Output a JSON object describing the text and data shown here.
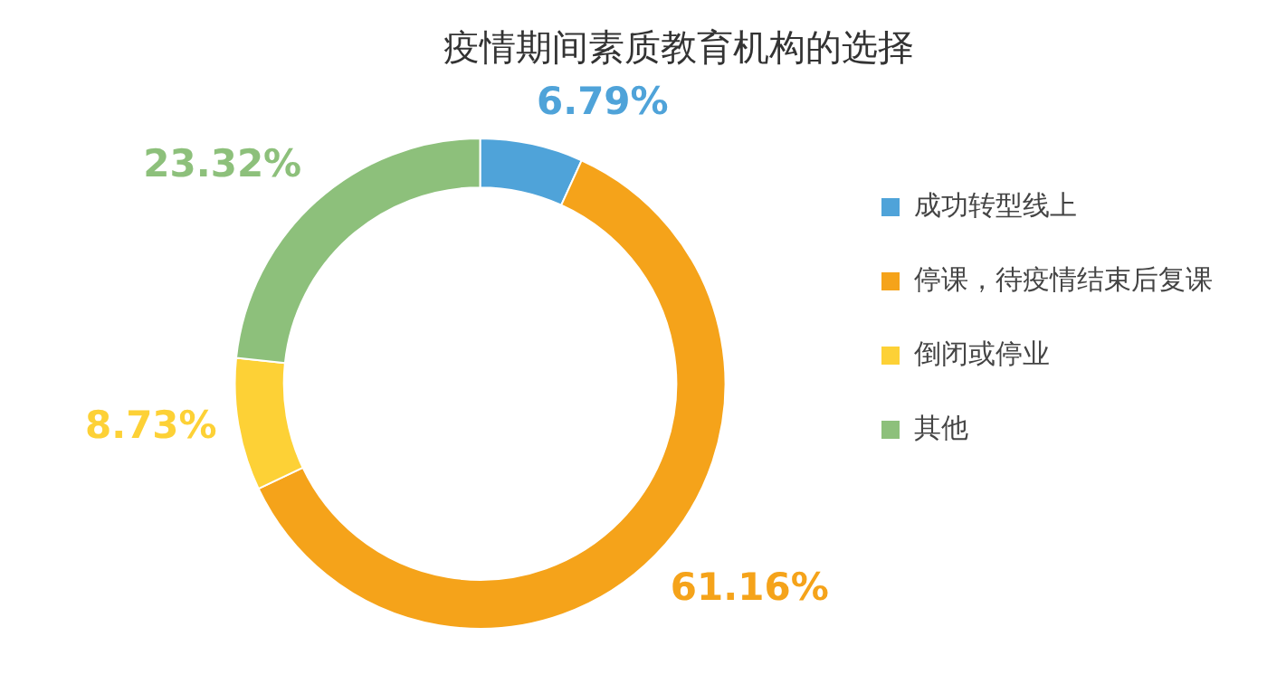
{
  "chart_data": {
    "type": "donut",
    "title": "疫情期间素质教育机构的选择",
    "categories": [
      "成功转型线上",
      "停课，待疫情结束后复课",
      "倒闭或停业",
      "其他"
    ],
    "values": [
      6.79,
      61.16,
      8.73,
      23.32
    ],
    "colors": [
      "#4fa3d9",
      "#f5a31a",
      "#fdd136",
      "#8dc07b"
    ],
    "value_labels": [
      "6.79%",
      "61.16%",
      "8.73%",
      "23.32%"
    ],
    "legend": "right"
  }
}
